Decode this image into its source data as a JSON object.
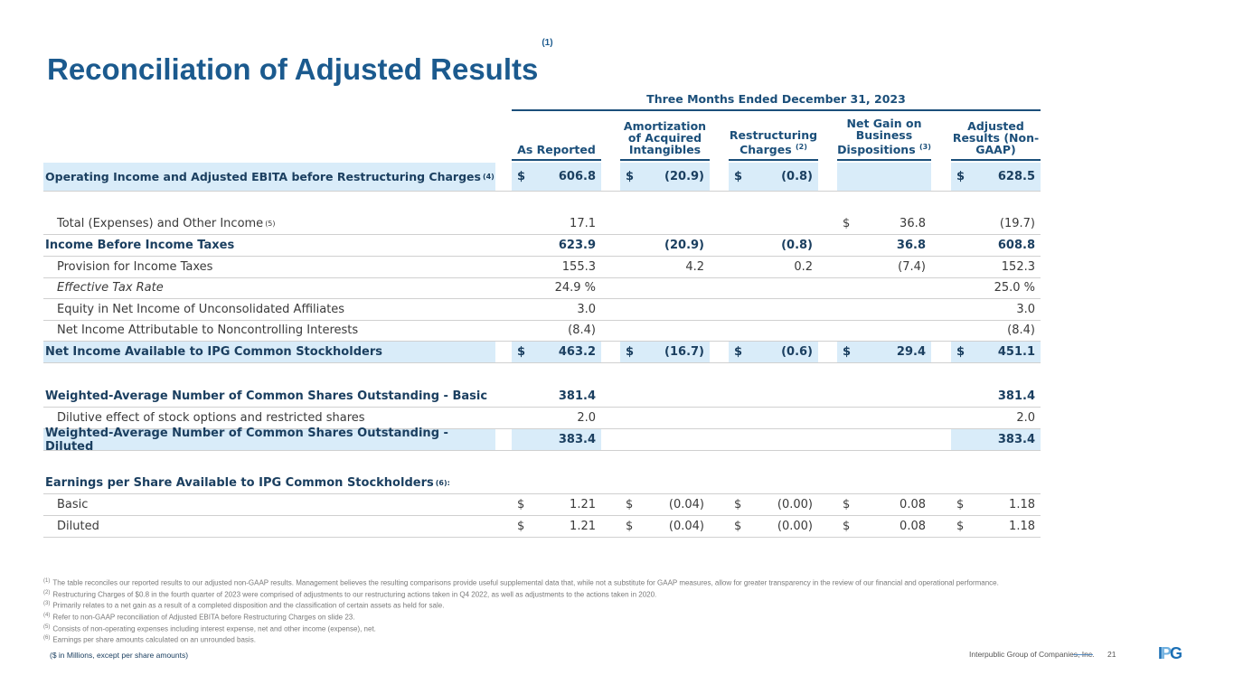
{
  "title": "Reconciliation of Adjusted Results",
  "title_note": "(1)",
  "period": "Three Months Ended December 31, 2023",
  "columns": [
    {
      "label": "As Reported",
      "note": ""
    },
    {
      "label": "Amortization of Acquired Intangibles",
      "note": ""
    },
    {
      "label": "Restructuring Charges",
      "note": "(2)"
    },
    {
      "label": "Net Gain on Business Dispositions",
      "note": "(3)"
    },
    {
      "label": "Adjusted Results (Non-GAAP)",
      "note": ""
    }
  ],
  "rows": [
    {
      "label": "Operating Income and Adjusted EBITA before Restructuring Charges",
      "note": "(4)",
      "style": "b",
      "cells": [
        [
          "$",
          "606.8"
        ],
        [
          "$",
          "(20.9)"
        ],
        [
          "$",
          "(0.8)"
        ],
        [
          "",
          ""
        ],
        [
          "$",
          "628.5"
        ]
      ]
    },
    {
      "label": "Total (Expenses) and Other Income",
      "note": "(5)",
      "style": "ind",
      "cells": [
        [
          "",
          "17.1"
        ],
        [
          "",
          ""
        ],
        [
          "",
          ""
        ],
        [
          "$",
          "36.8"
        ],
        [
          "",
          "(19.7)"
        ]
      ]
    },
    {
      "label": "Income Before Income Taxes",
      "note": "",
      "style": "b",
      "cells": [
        [
          "",
          "623.9"
        ],
        [
          "",
          "(20.9)"
        ],
        [
          "",
          "(0.8)"
        ],
        [
          "",
          "36.8"
        ],
        [
          "",
          "608.8"
        ]
      ]
    },
    {
      "label": "Provision for Income Taxes",
      "note": "",
      "style": "ind",
      "cells": [
        [
          "",
          "155.3"
        ],
        [
          "",
          "4.2"
        ],
        [
          "",
          "0.2"
        ],
        [
          "",
          "(7.4)"
        ],
        [
          "",
          "152.3"
        ]
      ]
    },
    {
      "label": "Effective Tax Rate",
      "note": "",
      "style": "ind i",
      "cells": [
        [
          "",
          "24.9 %"
        ],
        [
          "",
          ""
        ],
        [
          "",
          ""
        ],
        [
          "",
          ""
        ],
        [
          "",
          "25.0 %"
        ]
      ]
    },
    {
      "label": "Equity in Net Income of Unconsolidated Affiliates",
      "note": "",
      "style": "ind",
      "cells": [
        [
          "",
          "3.0"
        ],
        [
          "",
          ""
        ],
        [
          "",
          ""
        ],
        [
          "",
          ""
        ],
        [
          "",
          "3.0"
        ]
      ]
    },
    {
      "label": "Net Income Attributable to Noncontrolling Interests",
      "note": "",
      "style": "ind",
      "cells": [
        [
          "",
          "(8.4)"
        ],
        [
          "",
          ""
        ],
        [
          "",
          ""
        ],
        [
          "",
          ""
        ],
        [
          "",
          "(8.4)"
        ]
      ]
    },
    {
      "label": "Net Income Available to IPG Common Stockholders",
      "note": "",
      "style": "b",
      "cells": [
        [
          "$",
          "463.2"
        ],
        [
          "$",
          "(16.7)"
        ],
        [
          "$",
          "(0.6)"
        ],
        [
          "$",
          "29.4"
        ],
        [
          "$",
          "451.1"
        ]
      ]
    },
    {
      "label": "Weighted-Average Number of Common Shares Outstanding - Basic",
      "note": "",
      "style": "b",
      "cells": [
        [
          "",
          "381.4"
        ],
        [
          "",
          ""
        ],
        [
          "",
          ""
        ],
        [
          "",
          ""
        ],
        [
          "",
          "381.4"
        ]
      ]
    },
    {
      "label": "Dilutive effect of stock options and restricted shares",
      "note": "",
      "style": "ind",
      "cells": [
        [
          "",
          "2.0"
        ],
        [
          "",
          ""
        ],
        [
          "",
          ""
        ],
        [
          "",
          ""
        ],
        [
          "",
          "2.0"
        ]
      ]
    },
    {
      "label": "Weighted-Average Number of Common Shares Outstanding - Diluted",
      "note": "",
      "style": "b",
      "cells": [
        [
          "",
          "383.4"
        ],
        [
          "",
          ""
        ],
        [
          "",
          ""
        ],
        [
          "",
          ""
        ],
        [
          "",
          "383.4"
        ]
      ]
    },
    {
      "label": "Earnings per Share Available to IPG Common Stockholders",
      "note": "(6):",
      "style": "b",
      "cells": [
        [
          "",
          ""
        ],
        [
          "",
          ""
        ],
        [
          "",
          ""
        ],
        [
          "",
          ""
        ],
        [
          "",
          ""
        ]
      ]
    },
    {
      "label": "Basic",
      "note": "",
      "style": "ind",
      "cells": [
        [
          "$",
          "1.21"
        ],
        [
          "$",
          "(0.04)"
        ],
        [
          "$",
          "(0.00)"
        ],
        [
          "$",
          "0.08"
        ],
        [
          "$",
          "1.18"
        ]
      ]
    },
    {
      "label": "Diluted",
      "note": "",
      "style": "ind",
      "cells": [
        [
          "$",
          "1.21"
        ],
        [
          "$",
          "(0.04)"
        ],
        [
          "$",
          "(0.00)"
        ],
        [
          "$",
          "0.08"
        ],
        [
          "$",
          "1.18"
        ]
      ]
    }
  ],
  "footnotes": [
    {
      "n": "(1)",
      "t": "The table reconciles our reported results to our adjusted non-GAAP results. Management believes the resulting comparisons provide useful supplemental data that, while not a substitute for GAAP measures, allow for greater transparency in the review of our financial and operational performance."
    },
    {
      "n": "(2)",
      "t": "Restructuring Charges of $0.8 in the fourth quarter of 2023 were comprised of adjustments to our restructuring actions taken in Q4 2022, as well as adjustments to the actions taken in 2020."
    },
    {
      "n": "(3)",
      "t": "Primarily relates to a net gain as a result of a completed disposition and the classification of certain assets as held for sale."
    },
    {
      "n": "(4)",
      "t": "Refer to non-GAAP reconciliation of Adjusted EBITA before Restructuring Charges on slide 23."
    },
    {
      "n": "(5)",
      "t": "Consists of non-operating expenses including interest expense, net and other income (expense), net."
    },
    {
      "n": "(6)",
      "t": "Earnings per share amounts calculated on an unrounded basis."
    }
  ],
  "units": "($ in Millions, except per share amounts)",
  "company": "Interpublic Group of Companies, Inc.",
  "page": "21",
  "logo": "IPG"
}
